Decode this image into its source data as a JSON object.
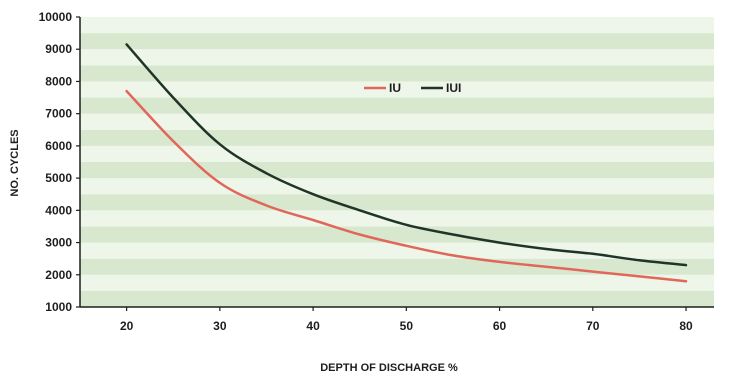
{
  "chart_data": {
    "type": "line",
    "title": "",
    "xlabel": "DEPTH OF DISCHARGE %",
    "ylabel": "NO. CYCLES",
    "xlim": [
      15,
      83
    ],
    "ylim": [
      1000,
      10000
    ],
    "x_ticks": [
      20,
      30,
      40,
      50,
      60,
      70,
      80
    ],
    "y_ticks": [
      1000,
      2000,
      3000,
      4000,
      5000,
      6000,
      7000,
      8000,
      9000,
      10000
    ],
    "grid": "horizontal bands",
    "legend_position": "top-center",
    "series": [
      {
        "name": "IU",
        "color": "#e0675a",
        "x": [
          20,
          25,
          30,
          35,
          40,
          45,
          50,
          55,
          60,
          65,
          70,
          75,
          80
        ],
        "y": [
          7700,
          6150,
          4850,
          4150,
          3700,
          3250,
          2900,
          2600,
          2400,
          2250,
          2100,
          1950,
          1800
        ]
      },
      {
        "name": "IUI",
        "color": "#1f3527",
        "x": [
          20,
          25,
          30,
          35,
          40,
          45,
          50,
          55,
          60,
          65,
          70,
          75,
          80
        ],
        "y": [
          9150,
          7500,
          6050,
          5150,
          4500,
          4000,
          3550,
          3250,
          3000,
          2800,
          2650,
          2450,
          2300
        ]
      }
    ],
    "colors": {
      "band_dark": "#d8e8cf",
      "band_light": "#eef5e9",
      "axis": "#1e1e1e"
    }
  }
}
